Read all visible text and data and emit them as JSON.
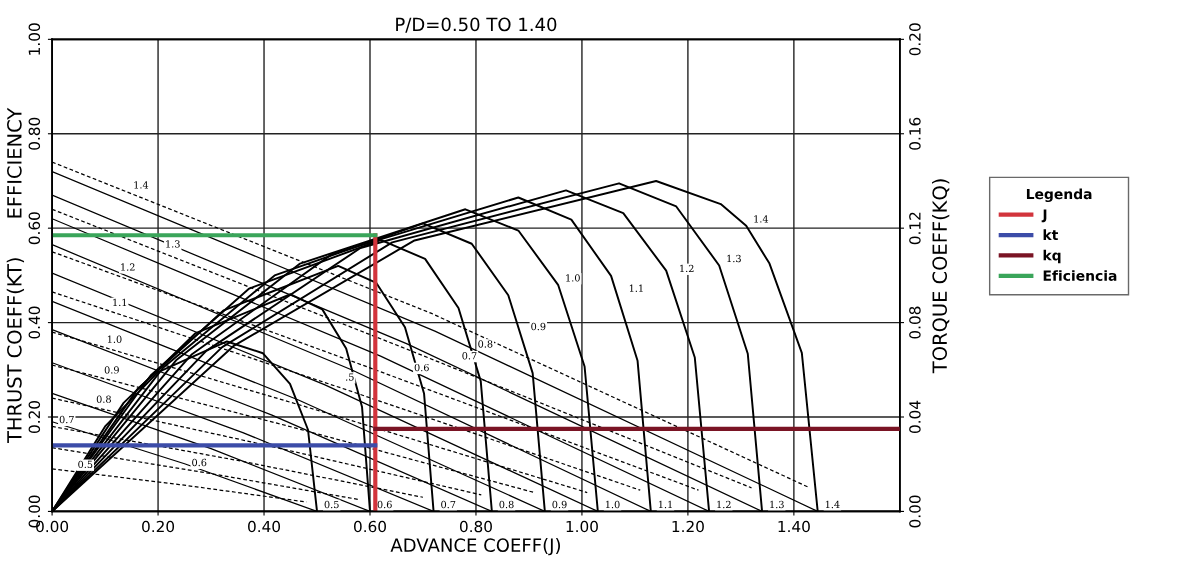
{
  "chart_data": {
    "type": "line",
    "title": "P/D=0.50 TO 1.40",
    "xlabel": "ADVANCE COEFF(J)",
    "ylabel": "THRUST COEFF(KT)      EFFICIENCY",
    "y2label": "TORQUE COEFF(KQ)",
    "legend_title": "Legenda",
    "xlim": [
      0,
      1.6
    ],
    "xticks": [
      {
        "value": 0,
        "label": "0.00"
      },
      {
        "value": 0.2,
        "label": "0.20"
      },
      {
        "value": 0.4,
        "label": "0.40"
      },
      {
        "value": 0.6,
        "label": "0.60"
      },
      {
        "value": 0.8,
        "label": "0.80"
      },
      {
        "value": 1.0,
        "label": "1.00"
      },
      {
        "value": 1.2,
        "label": "1.20"
      },
      {
        "value": 1.4,
        "label": "1.40"
      }
    ],
    "ylim": [
      0,
      1.0
    ],
    "yticks": [
      {
        "value": 0,
        "label": "0.00"
      },
      {
        "value": 0.2,
        "label": "0.20"
      },
      {
        "value": 0.4,
        "label": "0.40"
      },
      {
        "value": 0.6,
        "label": "0.60"
      },
      {
        "value": 0.8,
        "label": "0.80"
      },
      {
        "value": 1.0,
        "label": "1.00"
      }
    ],
    "y2lim": [
      0,
      0.2
    ],
    "y2ticks": [
      {
        "value": 0,
        "label": "0.00"
      },
      {
        "value": 0.04,
        "label": "0.04"
      },
      {
        "value": 0.08,
        "label": "0.08"
      },
      {
        "value": 0.12,
        "label": "0.12"
      },
      {
        "value": 0.16,
        "label": "0.16"
      },
      {
        "value": 0.2,
        "label": "0.20"
      }
    ],
    "grid": true,
    "legend": "right",
    "marker": "none",
    "series": [
      {
        "color": "#000000",
        "line_style": "solid",
        "x": [
          0,
          0.1,
          0.2,
          0.33,
          0.398,
          0.449,
          0.483,
          0.5
        ],
        "values": [
          0,
          0.18,
          0.295,
          0.36,
          0.335,
          0.27,
          0.173,
          0
        ]
      },
      {
        "color": "#000000",
        "line_style": "solid",
        "x": [
          0,
          0.135,
          0.27,
          0.45,
          0.51,
          0.555,
          0.585,
          0.6
        ],
        "values": [
          0,
          0.23,
          0.377,
          0.46,
          0.428,
          0.345,
          0.221,
          0
        ]
      },
      {
        "color": "#000000",
        "line_style": "solid",
        "x": [
          0,
          0.162,
          0.324,
          0.54,
          0.612,
          0.666,
          0.702,
          0.72
        ],
        "values": [
          0,
          0.26,
          0.426,
          0.52,
          0.484,
          0.39,
          0.25,
          0
        ]
      },
      {
        "color": "#000000",
        "line_style": "solid",
        "x": [
          0,
          0.186,
          0.372,
          0.62,
          0.704,
          0.767,
          0.809,
          0.83
        ],
        "values": [
          0,
          0.288,
          0.472,
          0.575,
          0.535,
          0.431,
          0.276,
          0
        ]
      },
      {
        "color": "#000000",
        "line_style": "solid",
        "x": [
          0,
          0.21,
          0.42,
          0.7,
          0.792,
          0.861,
          0.907,
          0.93
        ],
        "values": [
          0,
          0.305,
          0.5,
          0.61,
          0.567,
          0.458,
          0.293,
          0
        ]
      },
      {
        "color": "#000000",
        "line_style": "solid",
        "x": [
          0,
          0.234,
          0.468,
          0.78,
          0.88,
          0.955,
          1.005,
          1.03
        ],
        "values": [
          0,
          0.32,
          0.525,
          0.64,
          0.595,
          0.48,
          0.307,
          0
        ]
      },
      {
        "color": "#000000",
        "line_style": "solid",
        "x": [
          0,
          0.264,
          0.528,
          0.88,
          0.98,
          1.055,
          1.105,
          1.13
        ],
        "values": [
          0,
          0.333,
          0.545,
          0.665,
          0.618,
          0.499,
          0.319,
          0
        ]
      },
      {
        "color": "#000000",
        "line_style": "solid",
        "x": [
          0,
          0.291,
          0.582,
          0.97,
          1.078,
          1.159,
          1.213,
          1.24
        ],
        "values": [
          0,
          0.34,
          0.558,
          0.68,
          0.632,
          0.51,
          0.326,
          0
        ]
      },
      {
        "color": "#000000",
        "line_style": "solid",
        "x": [
          0,
          0.321,
          0.642,
          1.07,
          1.178,
          1.259,
          1.313,
          1.34
        ],
        "values": [
          0,
          0.348,
          0.57,
          0.695,
          0.646,
          0.521,
          0.334,
          0
        ]
      },
      {
        "color": "#000000",
        "line_style": "solid",
        "x": [
          0,
          0.342,
          0.684,
          1.14,
          1.262,
          1.31,
          1.354,
          1.415,
          1.445
        ],
        "values": [
          0,
          0.35,
          0.574,
          0.7,
          0.651,
          0.605,
          0.525,
          0.336,
          0
        ]
      },
      {
        "color": "#000000",
        "line_style": "solid",
        "x": [
          0,
          0.25,
          0.5
        ],
        "values": [
          0.19,
          0.101,
          0
        ]
      },
      {
        "color": "#000000",
        "line_style": "solid",
        "x": [
          0,
          0.3,
          0.6
        ],
        "values": [
          0.25,
          0.133,
          0
        ]
      },
      {
        "color": "#000000",
        "line_style": "solid",
        "x": [
          0,
          0.36,
          0.72
        ],
        "values": [
          0.315,
          0.167,
          0
        ]
      },
      {
        "color": "#000000",
        "line_style": "solid",
        "x": [
          0,
          0.415,
          0.83
        ],
        "values": [
          0.385,
          0.204,
          0
        ]
      },
      {
        "color": "#000000",
        "line_style": "solid",
        "x": [
          0,
          0.465,
          0.93
        ],
        "values": [
          0.445,
          0.236,
          0
        ]
      },
      {
        "color": "#000000",
        "line_style": "solid",
        "x": [
          0,
          0.515,
          1.03
        ],
        "values": [
          0.505,
          0.268,
          0
        ]
      },
      {
        "color": "#000000",
        "line_style": "solid",
        "x": [
          0,
          0.565,
          1.13
        ],
        "values": [
          0.565,
          0.3,
          0
        ]
      },
      {
        "color": "#000000",
        "line_style": "solid",
        "x": [
          0,
          0.62,
          1.24
        ],
        "values": [
          0.62,
          0.329,
          0
        ]
      },
      {
        "color": "#000000",
        "line_style": "solid",
        "x": [
          0,
          0.67,
          1.34
        ],
        "values": [
          0.67,
          0.355,
          0
        ]
      },
      {
        "color": "#000000",
        "line_style": "solid",
        "x": [
          0,
          0.7225,
          1.445
        ],
        "values": [
          0.72,
          0.382,
          0
        ]
      },
      {
        "color": "#000000",
        "line_style": "dashed",
        "x": [
          0,
          0.24,
          0.48
        ],
        "values": [
          0.09,
          0.057,
          0.02
        ]
      },
      {
        "color": "#000000",
        "line_style": "dashed",
        "x": [
          0,
          0.29,
          0.58
        ],
        "values": [
          0.135,
          0.082,
          0.025
        ]
      },
      {
        "color": "#000000",
        "line_style": "dashed",
        "x": [
          0,
          0.35,
          0.7
        ],
        "values": [
          0.18,
          0.108,
          0.03
        ]
      },
      {
        "color": "#000000",
        "line_style": "dashed",
        "x": [
          0,
          0.405,
          0.81
        ],
        "values": [
          0.24,
          0.14,
          0.035
        ]
      },
      {
        "color": "#000000",
        "line_style": "dashed",
        "x": [
          0,
          0.455,
          0.91
        ],
        "values": [
          0.31,
          0.178,
          0.04
        ]
      },
      {
        "color": "#000000",
        "line_style": "dashed",
        "x": [
          0,
          0.505,
          1.01
        ],
        "values": [
          0.38,
          0.213,
          0.04
        ]
      },
      {
        "color": "#000000",
        "line_style": "dashed",
        "x": [
          0,
          0.555,
          1.11
        ],
        "values": [
          0.465,
          0.258,
          0.045
        ]
      },
      {
        "color": "#000000",
        "line_style": "dashed",
        "x": [
          0,
          0.61,
          1.22
        ],
        "values": [
          0.55,
          0.3,
          0.045
        ]
      },
      {
        "color": "#000000",
        "line_style": "dashed",
        "x": [
          0,
          0.66,
          1.32
        ],
        "values": [
          0.64,
          0.348,
          0.05
        ]
      },
      {
        "color": "#000000",
        "line_style": "dashed",
        "x": [
          0,
          0.715,
          1.43
        ],
        "values": [
          0.74,
          0.42,
          0.05
        ]
      },
      {
        "name": "J",
        "color": "#d2343c",
        "line_style": "solid",
        "x": [
          0.61,
          0.61
        ],
        "values": [
          0,
          0.585
        ]
      },
      {
        "name": "kt",
        "color": "#3c4ca8",
        "line_style": "solid",
        "x": [
          0,
          0.61
        ],
        "values": [
          0.14,
          0.14
        ]
      },
      {
        "name": "kq",
        "color": "#7a1424",
        "line_style": "solid",
        "axis": "y2",
        "x": [
          0.61,
          1.6
        ],
        "values": [
          0.035,
          0.035
        ]
      },
      {
        "name": "Eficiencia",
        "color": "#3aa55a",
        "line_style": "solid",
        "x": [
          0,
          0.61
        ],
        "values": [
          0.585,
          0.585
        ]
      }
    ],
    "annotations": [
      {
        "text": "1.4",
        "x": 0.14,
        "y": 0.677
      },
      {
        "text": "1.3",
        "x": 0.2,
        "y": 0.552
      },
      {
        "text": "1.2",
        "x": 0.115,
        "y": 0.503
      },
      {
        "text": "1.1",
        "x": 0.1,
        "y": 0.428
      },
      {
        "text": "1.0",
        "x": 0.09,
        "y": 0.35
      },
      {
        "text": "0.9",
        "x": 0.085,
        "y": 0.285
      },
      {
        "text": "0.8",
        "x": 0.07,
        "y": 0.223
      },
      {
        "text": "0.7",
        "x": 0,
        "y": 0.18
      },
      {
        "text": "0.6",
        "x": 0.25,
        "y": 0.089
      },
      {
        "text": "0.5",
        "x": 0.035,
        "y": 0.085
      },
      {
        "text": ".5",
        "x": 0.54,
        "y": 0.27
      },
      {
        "text": "0.6",
        "x": 0.67,
        "y": 0.29
      },
      {
        "text": "0.7",
        "x": 0.76,
        "y": 0.315
      },
      {
        "text": "0.8",
        "x": 0.79,
        "y": 0.34
      },
      {
        "text": "0.9",
        "x": 0.89,
        "y": 0.377
      },
      {
        "text": "1.0",
        "x": 0.955,
        "y": 0.48
      },
      {
        "text": "1.1",
        "x": 1.075,
        "y": 0.458
      },
      {
        "text": "1.2",
        "x": 1.17,
        "y": 0.5
      },
      {
        "text": "1.3",
        "x": 1.259,
        "y": 0.521
      },
      {
        "text": "1.4",
        "x": 1.31,
        "y": 0.605
      },
      {
        "text": "0.5",
        "x": 0.5,
        "y": 0
      },
      {
        "text": "0.6",
        "x": 0.6,
        "y": 0
      },
      {
        "text": "0.7",
        "x": 0.72,
        "y": 0
      },
      {
        "text": "0.8",
        "x": 0.83,
        "y": 0
      },
      {
        "text": "0.9",
        "x": 0.93,
        "y": 0
      },
      {
        "text": "1.0",
        "x": 1.03,
        "y": 0
      },
      {
        "text": "1.1",
        "x": 1.13,
        "y": 0
      },
      {
        "text": "1.2",
        "x": 1.24,
        "y": 0
      },
      {
        "text": "1.3",
        "x": 1.34,
        "y": 0
      },
      {
        "text": "1.4",
        "x": 1.445,
        "y": 0
      }
    ]
  }
}
